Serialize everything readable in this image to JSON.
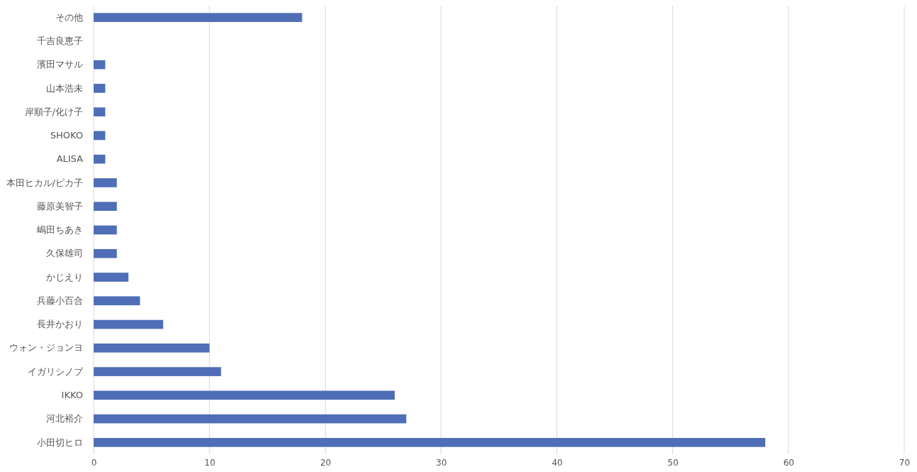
{
  "chart_data": {
    "type": "bar",
    "orientation": "horizontal",
    "categories": [
      "その他",
      "千吉良恵子",
      "濱田マサル",
      "山本浩未",
      "岸順子/化け子",
      "SHOKO",
      "ALISA",
      "本田ヒカル/ピカ子",
      "藤原美智子",
      "嶋田ちあき",
      "久保雄司",
      "かじえり",
      "兵藤小百合",
      "長井かおり",
      "ウォン・ジョンヨ",
      "イガリシノブ",
      "IKKO",
      "河北裕介",
      "小田切ヒロ"
    ],
    "values": [
      18,
      0,
      1,
      1,
      1,
      1,
      1,
      2,
      2,
      2,
      2,
      3,
      4,
      6,
      10,
      11,
      26,
      27,
      58
    ],
    "color": "#4f6eb7",
    "xlim": [
      0,
      70
    ],
    "xticks": [
      0,
      10,
      20,
      30,
      40,
      50,
      60,
      70
    ],
    "grid": "x"
  }
}
